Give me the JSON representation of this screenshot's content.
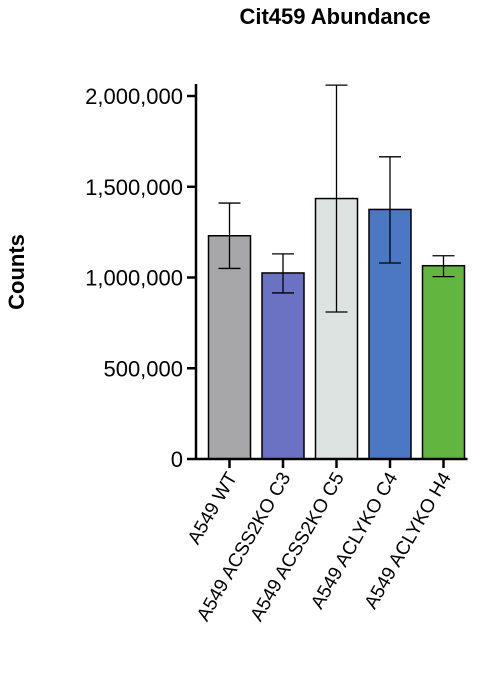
{
  "chart_data": {
    "type": "bar",
    "title": "Cit459 Abundance",
    "ylabel": "Counts",
    "xlabel": "",
    "ylim": [
      0,
      2000000
    ],
    "yticks": [
      0,
      500000,
      1000000,
      1500000,
      2000000
    ],
    "ytick_labels": [
      "0",
      "500,000",
      "1,000,000",
      "1,500,000",
      "2,000,000"
    ],
    "categories": [
      "A549 WT",
      "A549 ACSS2KO C3",
      "A549 ACSS2KO C5",
      "A549 ACLYKO C4",
      "A549 ACLYKO H4"
    ],
    "values": [
      1230000,
      1025000,
      1435000,
      1375000,
      1065000
    ],
    "error_low": [
      1050000,
      915000,
      810000,
      1080000,
      1005000
    ],
    "error_high": [
      1410000,
      1130000,
      2060000,
      1665000,
      1120000
    ],
    "colors": [
      "#a7a7aa",
      "#6b72c4",
      "#dde3e1",
      "#4c77c3",
      "#62b53f"
    ],
    "grid": false,
    "legend": "none"
  }
}
